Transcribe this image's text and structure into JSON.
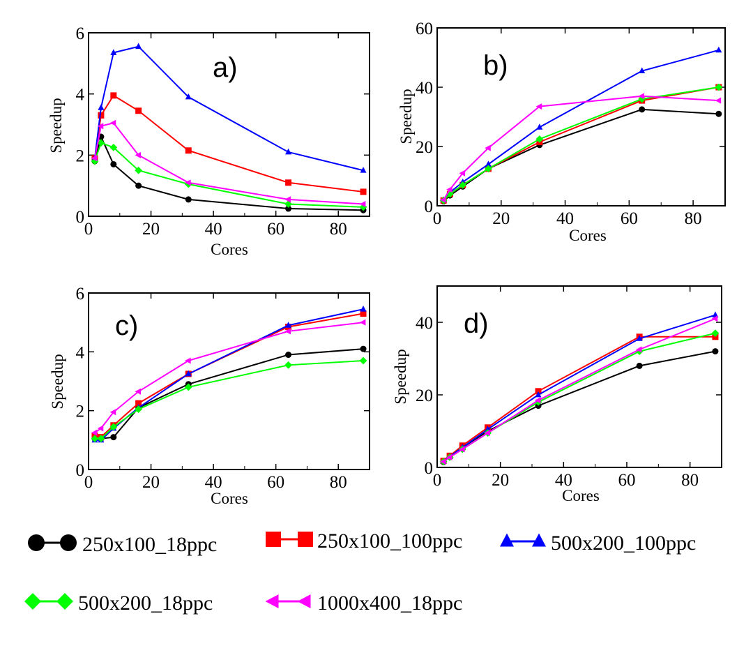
{
  "colors": {
    "250x100_18ppc": "#000000",
    "250x100_100ppc": "#ff0000",
    "500x200_100ppc": "#0000ff",
    "500x200_18ppc": "#00ff00",
    "1000x400_18ppc": "#ff00ff"
  },
  "legend": [
    {
      "name": "250x100_18ppc",
      "marker": "circle-icon"
    },
    {
      "name": "250x100_100ppc",
      "marker": "square-icon"
    },
    {
      "name": "500x200_100ppc",
      "marker": "triangle-up-icon"
    },
    {
      "name": "500x200_18ppc",
      "marker": "diamond-icon"
    },
    {
      "name": "1000x400_18ppc",
      "marker": "triangle-left-icon"
    }
  ],
  "chart_data": [
    {
      "type": "line",
      "title": "a)",
      "xlabel": "Cores",
      "ylabel": "Speedup",
      "xlim": [
        0,
        90
      ],
      "ylim": [
        0,
        6
      ],
      "xticks": [
        "0",
        "20",
        "40",
        "60",
        "80"
      ],
      "yticks": [
        "0",
        "2",
        "4",
        "6"
      ],
      "x": [
        2,
        4,
        8,
        16,
        32,
        64,
        88
      ],
      "series": [
        {
          "name": "250x100_18ppc",
          "values": [
            1.8,
            2.6,
            1.7,
            1.0,
            0.55,
            0.25,
            0.2
          ]
        },
        {
          "name": "250x100_100ppc",
          "values": [
            1.9,
            3.3,
            3.95,
            3.45,
            2.15,
            1.1,
            0.8
          ]
        },
        {
          "name": "500x200_100ppc",
          "values": [
            1.9,
            3.55,
            5.35,
            5.55,
            3.9,
            2.1,
            1.5
          ]
        },
        {
          "name": "500x200_18ppc",
          "values": [
            1.8,
            2.4,
            2.25,
            1.5,
            1.05,
            0.4,
            0.3
          ]
        },
        {
          "name": "1000x400_18ppc",
          "values": [
            1.9,
            2.95,
            3.05,
            2.0,
            1.1,
            0.55,
            0.4
          ]
        }
      ]
    },
    {
      "type": "line",
      "title": "b)",
      "xlabel": "Cores",
      "ylabel": "Speedup",
      "xlim": [
        0,
        90
      ],
      "ylim": [
        0,
        60
      ],
      "xticks": [
        "0",
        "20",
        "40",
        "60",
        "80"
      ],
      "yticks": [
        "0",
        "20",
        "40",
        "60"
      ],
      "x": [
        2,
        4,
        8,
        16,
        32,
        64,
        88
      ],
      "series": [
        {
          "name": "250x100_18ppc",
          "values": [
            1.5,
            3.5,
            6.5,
            12.5,
            20.5,
            32.5,
            31.0
          ]
        },
        {
          "name": "250x100_100ppc",
          "values": [
            1.8,
            4.0,
            7.0,
            12.5,
            21.5,
            35.5,
            40.0
          ]
        },
        {
          "name": "500x200_100ppc",
          "values": [
            2.0,
            4.5,
            8.0,
            14.0,
            26.5,
            45.5,
            52.5
          ]
        },
        {
          "name": "500x200_18ppc",
          "values": [
            1.8,
            4.0,
            7.0,
            12.5,
            22.5,
            36.0,
            40.0
          ]
        },
        {
          "name": "1000x400_18ppc",
          "values": [
            2.0,
            5.5,
            11.0,
            19.5,
            33.5,
            37.0,
            35.5
          ]
        }
      ]
    },
    {
      "type": "line",
      "title": "c)",
      "xlabel": "Cores",
      "ylabel": "Speedup",
      "xlim": [
        0,
        90
      ],
      "ylim": [
        0,
        6
      ],
      "xticks": [
        "0",
        "20",
        "40",
        "60",
        "80"
      ],
      "yticks": [
        "0",
        "2",
        "4",
        "6"
      ],
      "x": [
        2,
        4,
        8,
        16,
        32,
        64,
        88
      ],
      "series": [
        {
          "name": "250x100_18ppc",
          "values": [
            1.05,
            1.05,
            1.1,
            2.1,
            2.9,
            3.9,
            4.1
          ]
        },
        {
          "name": "250x100_100ppc",
          "values": [
            1.15,
            1.1,
            1.5,
            2.25,
            3.25,
            4.85,
            5.3
          ]
        },
        {
          "name": "500x200_100ppc",
          "values": [
            1.0,
            1.0,
            1.4,
            2.1,
            3.25,
            4.9,
            5.45
          ]
        },
        {
          "name": "500x200_18ppc",
          "values": [
            1.05,
            1.05,
            1.45,
            2.05,
            2.8,
            3.55,
            3.7
          ]
        },
        {
          "name": "1000x400_18ppc",
          "values": [
            1.25,
            1.4,
            1.95,
            2.65,
            3.7,
            4.7,
            5.0
          ]
        }
      ]
    },
    {
      "type": "line",
      "title": "d)",
      "xlabel": "Cores",
      "ylabel": "Speedup",
      "xlim": [
        0,
        90
      ],
      "ylim": [
        0,
        50
      ],
      "xticks": [
        "0",
        "20",
        "40",
        "60",
        "80"
      ],
      "yticks": [
        "0",
        "20",
        "40"
      ],
      "x": [
        2,
        4,
        8,
        16,
        32,
        64,
        88
      ],
      "series": [
        {
          "name": "250x100_18ppc",
          "values": [
            1.5,
            3.0,
            5.5,
            10.0,
            17.0,
            28.0,
            32.0
          ]
        },
        {
          "name": "250x100_100ppc",
          "values": [
            1.8,
            3.2,
            6.0,
            11.0,
            21.0,
            36.0,
            36.0
          ]
        },
        {
          "name": "500x200_100ppc",
          "values": [
            1.7,
            3.0,
            5.5,
            10.5,
            20.0,
            35.5,
            42.0
          ]
        },
        {
          "name": "500x200_18ppc",
          "values": [
            1.6,
            2.8,
            5.0,
            9.5,
            18.0,
            32.0,
            37.0
          ]
        },
        {
          "name": "1000x400_18ppc",
          "values": [
            1.6,
            2.8,
            5.0,
            9.5,
            18.5,
            32.5,
            41.0
          ]
        }
      ]
    }
  ]
}
